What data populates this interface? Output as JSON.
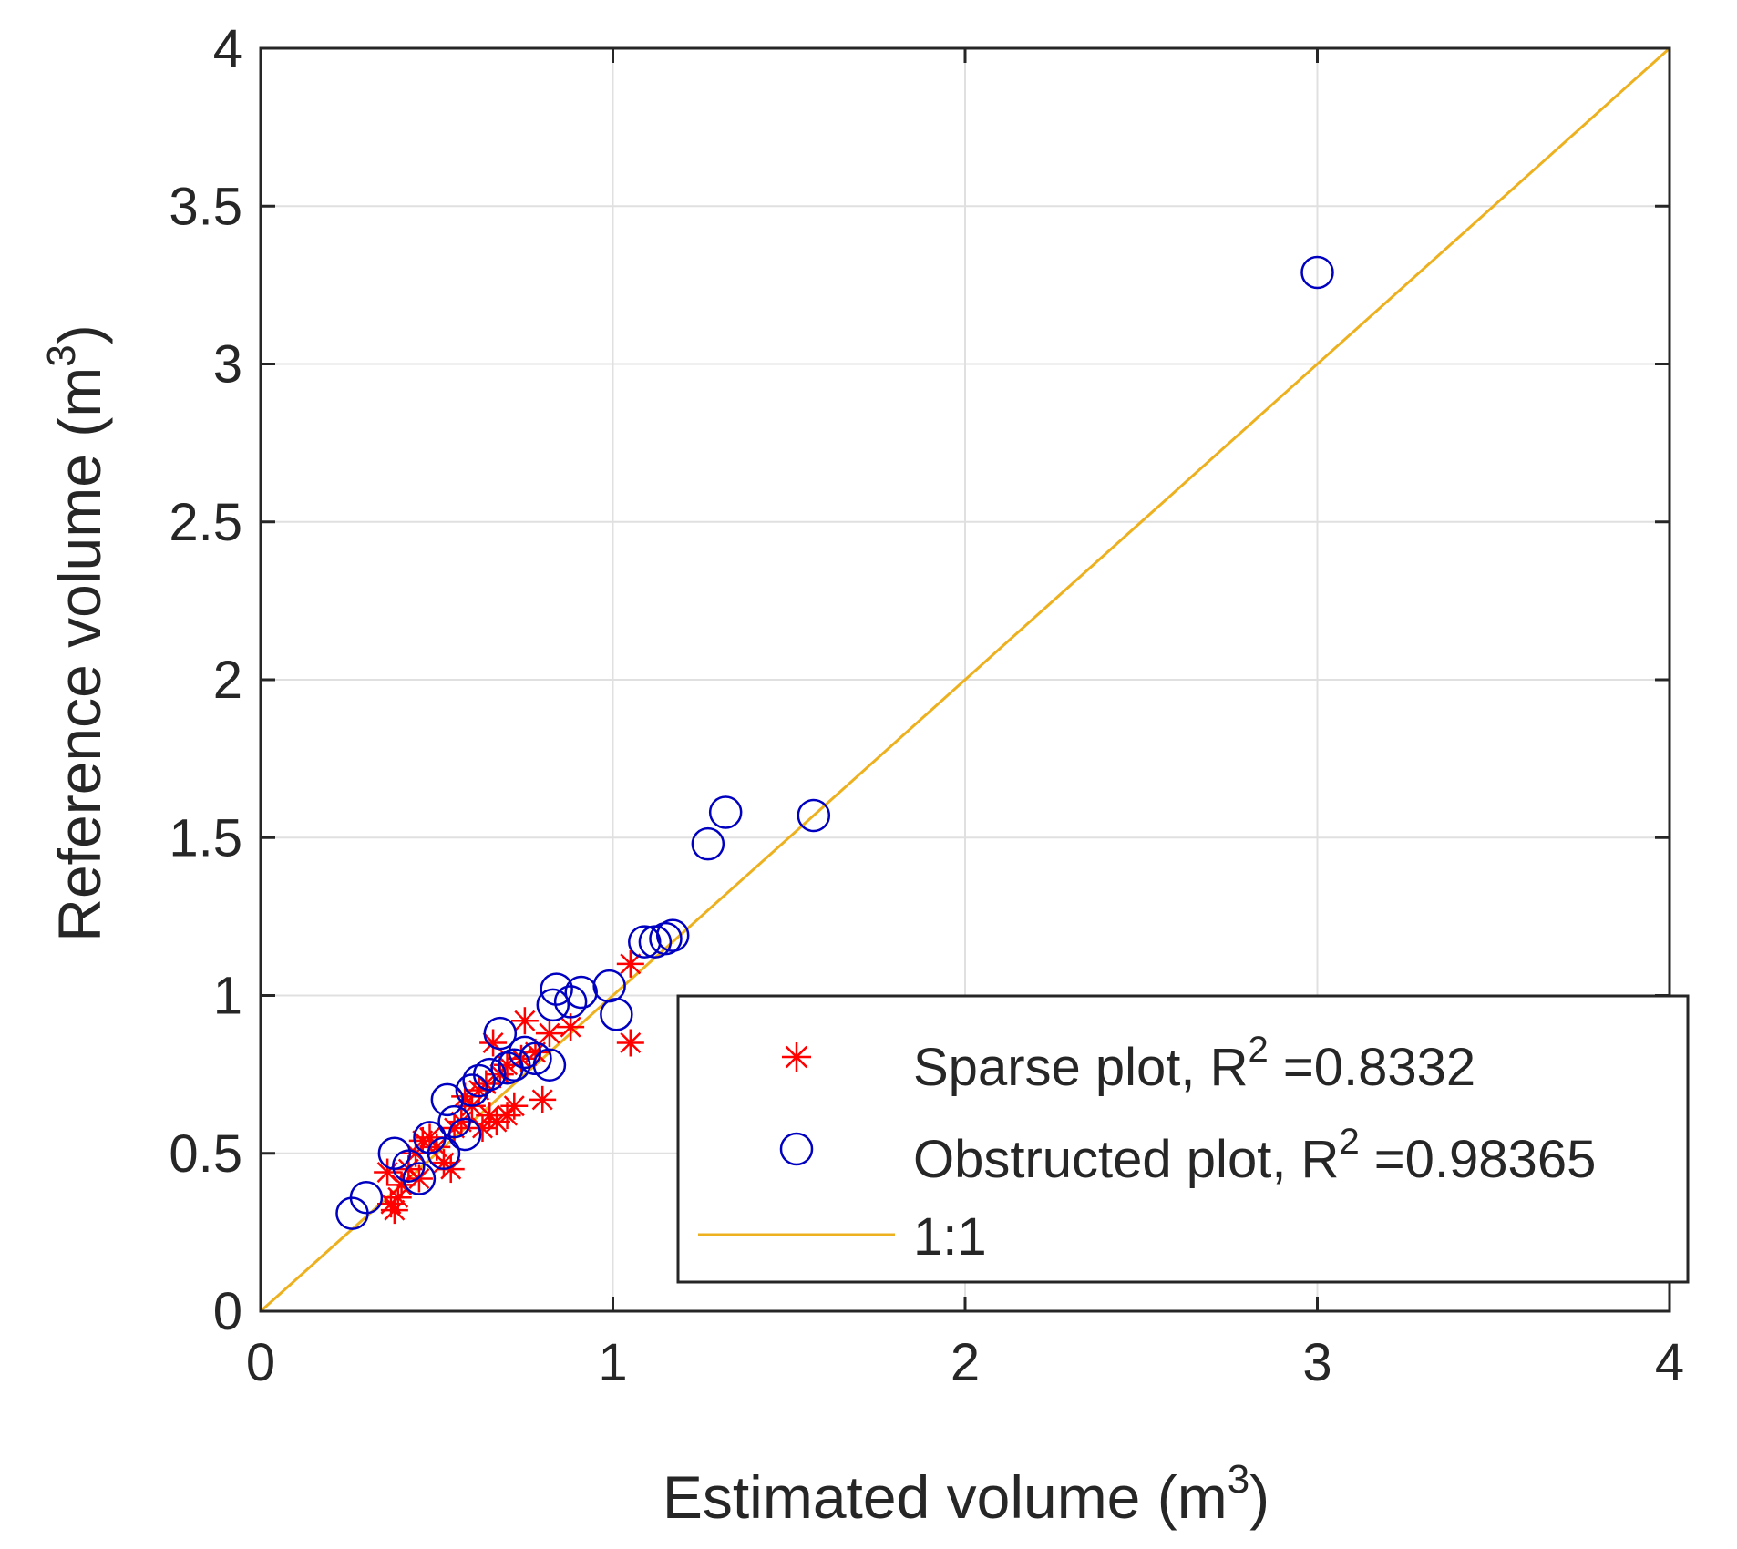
{
  "chart_data": {
    "type": "scatter",
    "title": "",
    "xlabel": "Estimated volume (m",
    "xlabel_sup": "3",
    "xlabel_end": ")",
    "ylabel": "Reference volume (m",
    "ylabel_sup": "3",
    "ylabel_end": ")",
    "xlim": [
      0,
      4
    ],
    "ylim": [
      0,
      4
    ],
    "x_ticks": [
      0,
      1,
      2,
      3,
      4
    ],
    "x_tick_labels": [
      "0",
      "1",
      "2",
      "3",
      "4"
    ],
    "y_ticks": [
      0,
      0.5,
      1,
      1.5,
      2,
      2.5,
      3,
      3.5,
      4
    ],
    "y_tick_labels": [
      "0",
      "0.5",
      "1",
      "1.5",
      "2",
      "2.5",
      "3",
      "3.5",
      "4"
    ],
    "grid": true,
    "legend_position": "bottom-right",
    "legend": [
      {
        "text": "Sparse plot, R",
        "sup": "2",
        "suffix": " =0.8332"
      },
      {
        "text": "Obstructed plot, R",
        "sup": "2",
        "suffix": " =0.98365"
      },
      {
        "text": "1:1",
        "sup": "",
        "suffix": ""
      }
    ],
    "colors": {
      "sparse": "#ff0000",
      "obstructed": "#0000c0",
      "line": "#edb120",
      "axis": "#262626",
      "grid": "#e0e0e0"
    },
    "series": [
      {
        "name": "Sparse plot",
        "marker": "asterisk",
        "points": [
          [
            0.37,
            0.34
          ],
          [
            0.38,
            0.32
          ],
          [
            0.39,
            0.36
          ],
          [
            0.36,
            0.44
          ],
          [
            0.4,
            0.4
          ],
          [
            0.42,
            0.45
          ],
          [
            0.44,
            0.5
          ],
          [
            0.46,
            0.54
          ],
          [
            0.48,
            0.55
          ],
          [
            0.5,
            0.52
          ],
          [
            0.52,
            0.47
          ],
          [
            0.54,
            0.45
          ],
          [
            0.55,
            0.58
          ],
          [
            0.57,
            0.6
          ],
          [
            0.6,
            0.65
          ],
          [
            0.62,
            0.7
          ],
          [
            0.64,
            0.72
          ],
          [
            0.65,
            0.62
          ],
          [
            0.67,
            0.6
          ],
          [
            0.68,
            0.75
          ],
          [
            0.7,
            0.78
          ],
          [
            0.72,
            0.65
          ],
          [
            0.75,
            0.92
          ],
          [
            0.78,
            0.82
          ],
          [
            0.8,
            0.67
          ],
          [
            0.82,
            0.88
          ],
          [
            0.66,
            0.85
          ],
          [
            0.88,
            0.9
          ],
          [
            1.05,
            1.1
          ],
          [
            1.05,
            0.85
          ],
          [
            0.45,
            0.42
          ],
          [
            0.58,
            0.68
          ],
          [
            0.7,
            0.62
          ],
          [
            0.63,
            0.58
          ],
          [
            0.74,
            0.8
          ]
        ]
      },
      {
        "name": "Obstructed plot",
        "marker": "circle",
        "points": [
          [
            0.26,
            0.31
          ],
          [
            0.3,
            0.36
          ],
          [
            0.38,
            0.5
          ],
          [
            0.42,
            0.46
          ],
          [
            0.45,
            0.42
          ],
          [
            0.48,
            0.55
          ],
          [
            0.52,
            0.5
          ],
          [
            0.53,
            0.67
          ],
          [
            0.55,
            0.6
          ],
          [
            0.58,
            0.56
          ],
          [
            0.6,
            0.7
          ],
          [
            0.62,
            0.73
          ],
          [
            0.65,
            0.75
          ],
          [
            0.68,
            0.88
          ],
          [
            0.7,
            0.77
          ],
          [
            0.72,
            0.78
          ],
          [
            0.75,
            0.82
          ],
          [
            0.78,
            0.8
          ],
          [
            0.82,
            0.78
          ],
          [
            0.83,
            0.97
          ],
          [
            0.84,
            1.02
          ],
          [
            0.88,
            0.98
          ],
          [
            0.91,
            1.01
          ],
          [
            0.99,
            1.03
          ],
          [
            1.01,
            0.94
          ],
          [
            1.09,
            1.17
          ],
          [
            1.12,
            1.17
          ],
          [
            1.15,
            1.18
          ],
          [
            1.17,
            1.19
          ],
          [
            1.27,
            1.48
          ],
          [
            1.32,
            1.58
          ],
          [
            1.57,
            1.57
          ],
          [
            3.0,
            3.29
          ]
        ]
      }
    ],
    "reference_line": {
      "name": "1:1",
      "from": [
        0,
        0
      ],
      "to": [
        4,
        4
      ]
    }
  }
}
